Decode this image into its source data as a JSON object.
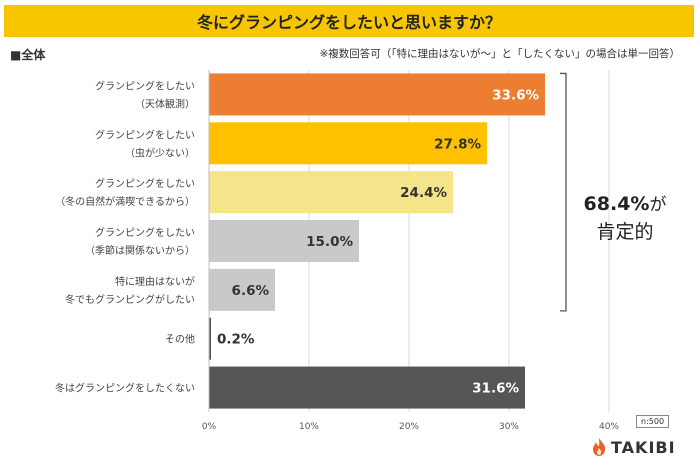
{
  "title": "冬にグランピングをしたいと思いますか？",
  "subset_label": "■全体",
  "note": "※複数回答可（「特に理由はないが～」と「したくない」の場合は単一回答）",
  "summary": {
    "value": "68.4%",
    "suffix": "が",
    "line2": "肯定的"
  },
  "sample_size": "n:500",
  "logo_text": "TAKIBI",
  "colors": {
    "title_bg": "#f7c600",
    "orange": "#ed7d31",
    "gold": "#ffc000",
    "light_yellow": "#f4e48a",
    "gray": "#c9c9c9",
    "dark_gray": "#555555",
    "flame": "#e8622a"
  },
  "chart_data": {
    "type": "bar",
    "orientation": "horizontal",
    "categories": [
      [
        "グランピングをしたい",
        "（天体観測）"
      ],
      [
        "グランピングをしたい",
        "（虫が少ない）"
      ],
      [
        "グランピングをしたい",
        "（冬の自然が満喫できるから）"
      ],
      [
        "グランピングをしたい",
        "（季節は関係ないから）"
      ],
      [
        "特に理由はないが",
        "冬でもグランピングがしたい"
      ],
      [
        "その他"
      ],
      [
        "冬はグランピングをしたくない"
      ]
    ],
    "values": [
      33.6,
      27.8,
      24.4,
      15.0,
      6.6,
      0.2,
      31.6
    ],
    "value_labels": [
      "33.6%",
      "27.8%",
      "24.4%",
      "15.0%",
      "6.6%",
      "0.2%",
      "31.6%"
    ],
    "bar_colors": [
      "#ed7d31",
      "#ffc000",
      "#f4e48a",
      "#c9c9c9",
      "#c9c9c9",
      "#555555",
      "#555555"
    ],
    "label_colors": [
      "#ffffff",
      "#333333",
      "#333333",
      "#333333",
      "#333333",
      "#333333",
      "#ffffff"
    ],
    "label_inside": [
      true,
      true,
      true,
      true,
      true,
      false,
      true
    ],
    "xlim": [
      0,
      40
    ],
    "xticks": [
      0,
      10,
      20,
      30,
      40
    ],
    "xtick_labels": [
      "0%",
      "10%",
      "20%",
      "30%",
      "40%"
    ],
    "bracket_covers": [
      0,
      4
    ],
    "grid": true
  }
}
